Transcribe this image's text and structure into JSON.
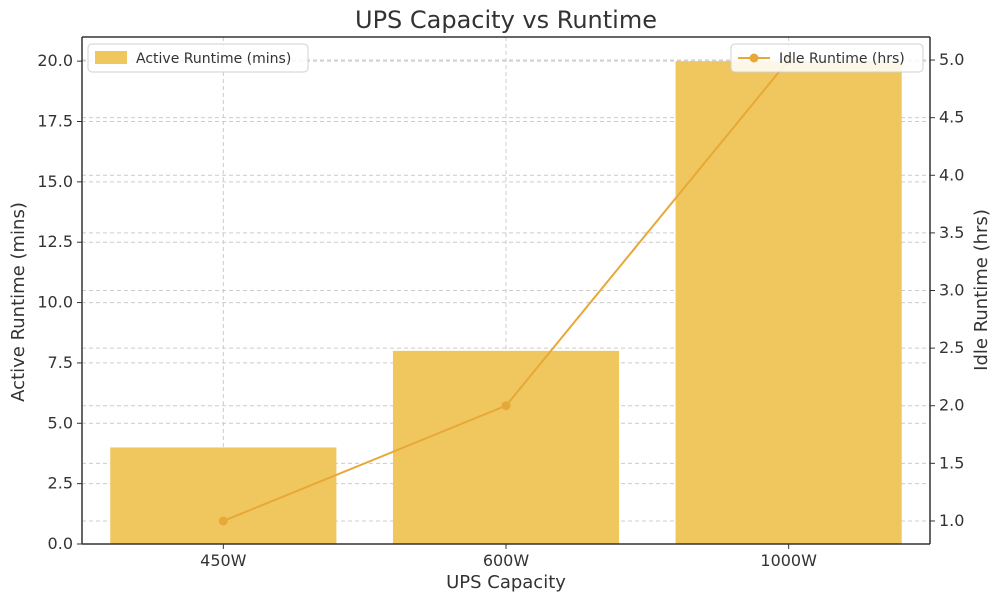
{
  "chart_data": {
    "type": "bar",
    "title": "UPS Capacity vs Runtime",
    "xlabel": "UPS Capacity",
    "ylabel": "Active Runtime (mins)",
    "y2label": "Idle Runtime (hrs)",
    "categories": [
      "450W",
      "600W",
      "1000W"
    ],
    "ylim": [
      0,
      21
    ],
    "y2lim": [
      0.8,
      5.2
    ],
    "yticks": [
      0.0,
      2.5,
      5.0,
      7.5,
      10.0,
      12.5,
      15.0,
      17.5,
      20.0
    ],
    "yticks_labels": [
      "0.0",
      "2.5",
      "5.0",
      "7.5",
      "10.0",
      "12.5",
      "15.0",
      "17.5",
      "20.0"
    ],
    "y2ticks": [
      1.0,
      1.5,
      2.0,
      2.5,
      3.0,
      3.5,
      4.0,
      4.5,
      5.0
    ],
    "y2ticks_labels": [
      "1.0",
      "1.5",
      "2.0",
      "2.5",
      "3.0",
      "3.5",
      "4.0",
      "4.5",
      "5.0"
    ],
    "grid": true,
    "series": [
      {
        "name": "Active Runtime (mins)",
        "type": "bar",
        "axis": "left",
        "values": [
          4,
          8,
          20
        ],
        "color": "#F0C75E"
      },
      {
        "name": "Idle Runtime (hrs)",
        "type": "line",
        "axis": "right",
        "values": [
          1.0,
          2.0,
          5.0
        ],
        "color": "#E8A838"
      }
    ],
    "legend": [
      {
        "label": "Active Runtime (mins)",
        "placement": "top-left"
      },
      {
        "label": "Idle Runtime (hrs)",
        "placement": "top-right"
      }
    ]
  }
}
